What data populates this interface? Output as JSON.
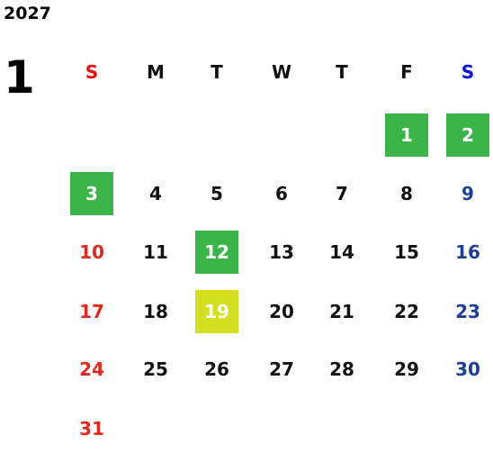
{
  "year": "2027",
  "month": "1",
  "weekdays": [
    {
      "label": "S",
      "color": "#e8120c"
    },
    {
      "label": "M",
      "color": "#111111"
    },
    {
      "label": "T",
      "color": "#111111"
    },
    {
      "label": "W",
      "color": "#111111"
    },
    {
      "label": "T",
      "color": "#111111"
    },
    {
      "label": "F",
      "color": "#111111"
    },
    {
      "label": "S",
      "color": "#0a14d8"
    }
  ],
  "day_colors": {
    "sunday": "#e02a1f",
    "weekday": "#111111",
    "saturday": "#1e3f94",
    "highlighted": "#ffffff"
  },
  "weeks": [
    [
      null,
      null,
      null,
      null,
      null,
      {
        "day": "1",
        "fill": "#3bb54a"
      },
      {
        "day": "2",
        "fill": "#3bb54a"
      }
    ],
    [
      {
        "day": "3",
        "fill": "#3bb54a"
      },
      "4",
      "5",
      "6",
      "7",
      "8",
      "9"
    ],
    [
      "10",
      "11",
      {
        "day": "12",
        "fill": "#3bb54a"
      },
      "13",
      "14",
      "15",
      "16"
    ],
    [
      "17",
      "18",
      {
        "day": "19",
        "fill": "#d4df22"
      },
      "20",
      "21",
      "22",
      "23"
    ],
    [
      "24",
      "25",
      "26",
      "27",
      "28",
      "29",
      "30"
    ],
    [
      "31",
      null,
      null,
      null,
      null,
      null,
      null
    ]
  ]
}
